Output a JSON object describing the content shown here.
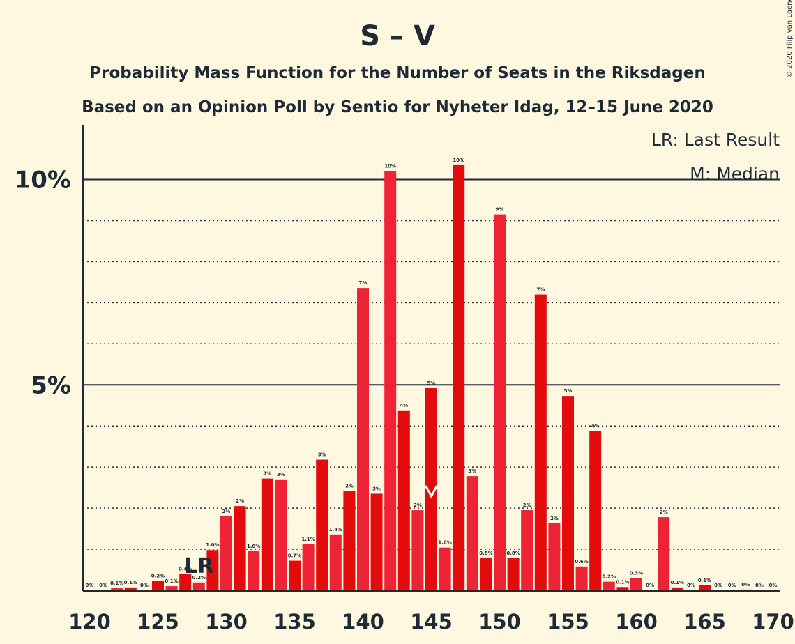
{
  "chart_data": {
    "type": "bar",
    "title": "S – V",
    "subtitle_1": "Probability Mass Function for the Number of Seats in the Riksdagen",
    "subtitle_2": "Based on an Opinion Poll by Sentio for Nyheter Idag, 12–15 June 2020",
    "copyright": "© 2020 Filip van Laenen",
    "legend": {
      "lr": "LR: Last Result",
      "median": "M: Median"
    },
    "lr_marker": {
      "label": "LR",
      "seat": 128
    },
    "median_marker": {
      "seat": 145
    },
    "xlim": [
      120,
      170
    ],
    "ylim": [
      0,
      11.2
    ],
    "yticks": [
      {
        "value": 5,
        "label": "5%"
      },
      {
        "value": 10,
        "label": "10%"
      }
    ],
    "minor_gridlines": [
      1,
      2,
      3,
      4,
      6,
      7,
      8,
      9
    ],
    "xticks": [
      120,
      125,
      130,
      135,
      140,
      145,
      150,
      155,
      160,
      165,
      170
    ],
    "colors": {
      "bar_a": "#ee2436",
      "bar_b": "#e30b0b",
      "text": "#1e2a36",
      "background": "#fff8e1"
    },
    "bars": [
      {
        "seat": 120,
        "value": 0.0,
        "label": "0%"
      },
      {
        "seat": 121,
        "value": 0.0,
        "label": "0%"
      },
      {
        "seat": 122,
        "value": 0.05,
        "label": "0.1%"
      },
      {
        "seat": 123,
        "value": 0.07,
        "label": "0.1%"
      },
      {
        "seat": 124,
        "value": 0.0,
        "label": "0%"
      },
      {
        "seat": 125,
        "value": 0.23,
        "label": "0.2%"
      },
      {
        "seat": 126,
        "value": 0.1,
        "label": "0.1%"
      },
      {
        "seat": 127,
        "value": 0.4,
        "label": "0.4%"
      },
      {
        "seat": 128,
        "value": 0.19,
        "label": "0.2%"
      },
      {
        "seat": 129,
        "value": 0.98,
        "label": "1.0%"
      },
      {
        "seat": 130,
        "value": 1.8,
        "label": "2%"
      },
      {
        "seat": 131,
        "value": 2.05,
        "label": "2%"
      },
      {
        "seat": 132,
        "value": 0.95,
        "label": "1.0%"
      },
      {
        "seat": 133,
        "value": 2.72,
        "label": "3%"
      },
      {
        "seat": 134,
        "value": 2.7,
        "label": "3%"
      },
      {
        "seat": 135,
        "value": 0.72,
        "label": "0.7%"
      },
      {
        "seat": 136,
        "value": 1.12,
        "label": "1.1%"
      },
      {
        "seat": 137,
        "value": 3.18,
        "label": "3%"
      },
      {
        "seat": 138,
        "value": 1.36,
        "label": "1.4%"
      },
      {
        "seat": 139,
        "value": 2.42,
        "label": "2%"
      },
      {
        "seat": 140,
        "value": 7.36,
        "label": "7%"
      },
      {
        "seat": 141,
        "value": 2.35,
        "label": "2%"
      },
      {
        "seat": 142,
        "value": 10.2,
        "label": "10%"
      },
      {
        "seat": 143,
        "value": 4.38,
        "label": "4%"
      },
      {
        "seat": 144,
        "value": 1.95,
        "label": "2%"
      },
      {
        "seat": 145,
        "value": 4.92,
        "label": "5%"
      },
      {
        "seat": 146,
        "value": 1.04,
        "label": "1.0%"
      },
      {
        "seat": 147,
        "value": 10.35,
        "label": "10%"
      },
      {
        "seat": 148,
        "value": 2.78,
        "label": "3%"
      },
      {
        "seat": 149,
        "value": 0.78,
        "label": "0.8%"
      },
      {
        "seat": 150,
        "value": 9.15,
        "label": "9%"
      },
      {
        "seat": 151,
        "value": 0.78,
        "label": "0.8%"
      },
      {
        "seat": 152,
        "value": 1.95,
        "label": "2%"
      },
      {
        "seat": 153,
        "value": 7.2,
        "label": "7%"
      },
      {
        "seat": 154,
        "value": 1.63,
        "label": "2%"
      },
      {
        "seat": 155,
        "value": 4.73,
        "label": "5%"
      },
      {
        "seat": 156,
        "value": 0.58,
        "label": "0.6%"
      },
      {
        "seat": 157,
        "value": 3.88,
        "label": "4%"
      },
      {
        "seat": 158,
        "value": 0.21,
        "label": "0.2%"
      },
      {
        "seat": 159,
        "value": 0.08,
        "label": "0.1%"
      },
      {
        "seat": 160,
        "value": 0.3,
        "label": "0.3%"
      },
      {
        "seat": 161,
        "value": 0.0,
        "label": "0%"
      },
      {
        "seat": 162,
        "value": 1.78,
        "label": "2%"
      },
      {
        "seat": 163,
        "value": 0.07,
        "label": "0.1%"
      },
      {
        "seat": 164,
        "value": 0.0,
        "label": "0%"
      },
      {
        "seat": 165,
        "value": 0.12,
        "label": "0.1%"
      },
      {
        "seat": 166,
        "value": 0.0,
        "label": "0%"
      },
      {
        "seat": 167,
        "value": 0.0,
        "label": "0%"
      },
      {
        "seat": 168,
        "value": 0.02,
        "label": "0%"
      },
      {
        "seat": 169,
        "value": 0.0,
        "label": "0%"
      },
      {
        "seat": 170,
        "value": 0.0,
        "label": "0%"
      }
    ]
  }
}
